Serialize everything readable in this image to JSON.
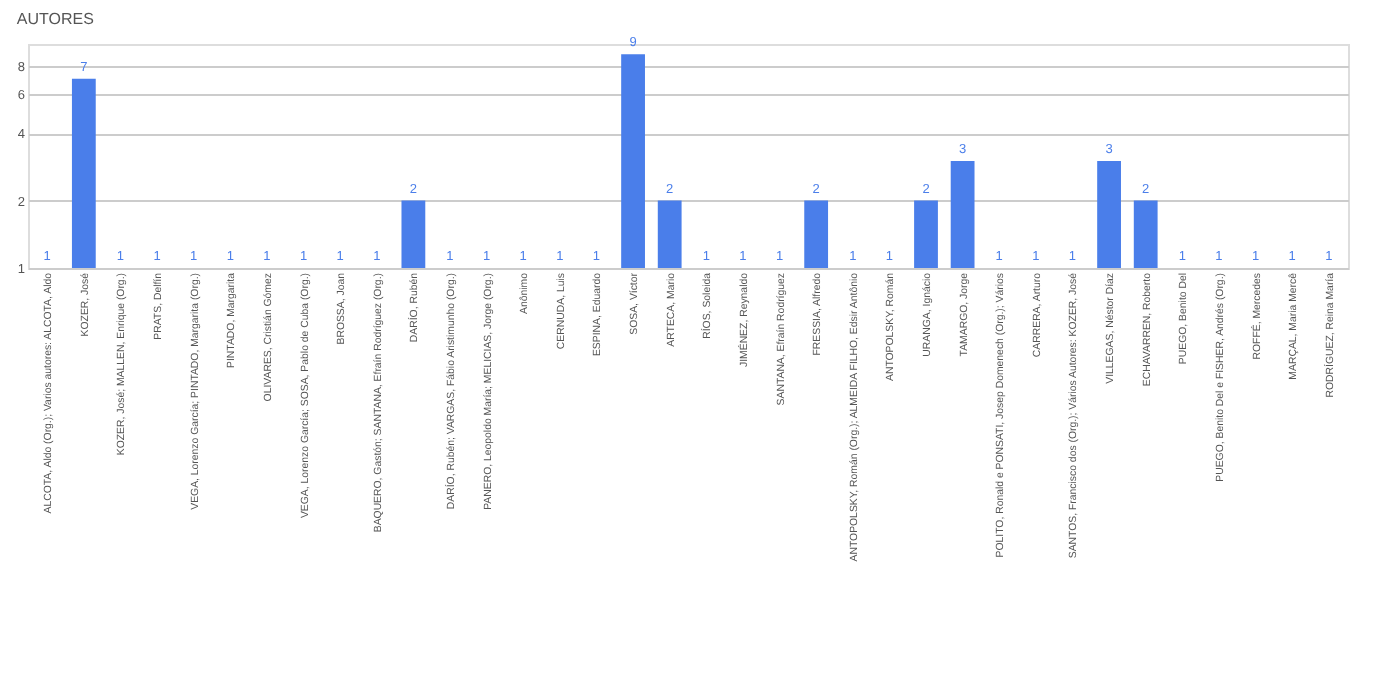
{
  "chart_data": {
    "type": "bar",
    "title": "AUTORES",
    "categories": [
      "ALCOTA, Aldo (Org.); Varios autores: ALCOTA, Aldo",
      "KOZER, José",
      "KOZER, José; MALLEN, Enrique (Org.)",
      "PRATS, Delfín",
      "VEGA, Lorenzo García; PINTADO, Margarita (Org.)",
      "PINTADO, Margarita",
      "OLIVARES, Cristián Gómez",
      "VEGA, Lorenzo García; SOSA, Pablo de Cuba (Org.)",
      "BROSSA, Joan",
      "BAQUERO, Gastón; SANTANA, Efraín Rodríguez (Org.)",
      "DARÍO, Rubén",
      "DARÍO, Rubén; VARGAS, Fábio Aristimunho (Org.)",
      "PANERO, Leopoldo María; MELICIAS, Jorge (Org.)",
      "Anônimo",
      "CERNUDA, Luis",
      "ESPINA, Eduardo",
      "SOSA, Víctor",
      "ARTECA, Mario",
      "RÍOS, Soleida",
      "JIMÉNEZ, Reynaldo",
      "SANTANA, Efraín Rodríguez",
      "FRESSIA, Alfredo",
      "ANTOPOLSKY, Román (Org.); ALMEIDA FILHO, Edsir Antônio",
      "ANTOPOLSKY, Román",
      "URANGA, Ignácio",
      "TAMARGO, Jorge",
      "POLITO, Ronald e PONSATI, Josep Domenech (Org.); Vários",
      "CARRERA, Arturo",
      "SANTOS, Francisco dos (Org.); Vários Autores: KOZER, José",
      "VILLEGAS, Néstor Díaz",
      "ECHAVARREN, Roberto",
      "PUEGO, Benito Del",
      "PUEGO, Benito Del e FISHER, Andrés (Org.)",
      "ROFFÉ, Mercedes",
      "MARÇAL, Maria Mercê",
      "RODRÍGUEZ, Reina María"
    ],
    "values": [
      1,
      7,
      1,
      1,
      1,
      1,
      1,
      1,
      1,
      1,
      2,
      1,
      1,
      1,
      1,
      1,
      9,
      2,
      1,
      1,
      1,
      2,
      1,
      1,
      2,
      3,
      1,
      1,
      1,
      3,
      2,
      1,
      1,
      1,
      1,
      1
    ],
    "color": "#4a7eea",
    "log": true,
    "ylim": [
      1,
      10
    ],
    "yticks": [
      1,
      2,
      4,
      6,
      8
    ],
    "grid": "y",
    "data_labels": true
  }
}
